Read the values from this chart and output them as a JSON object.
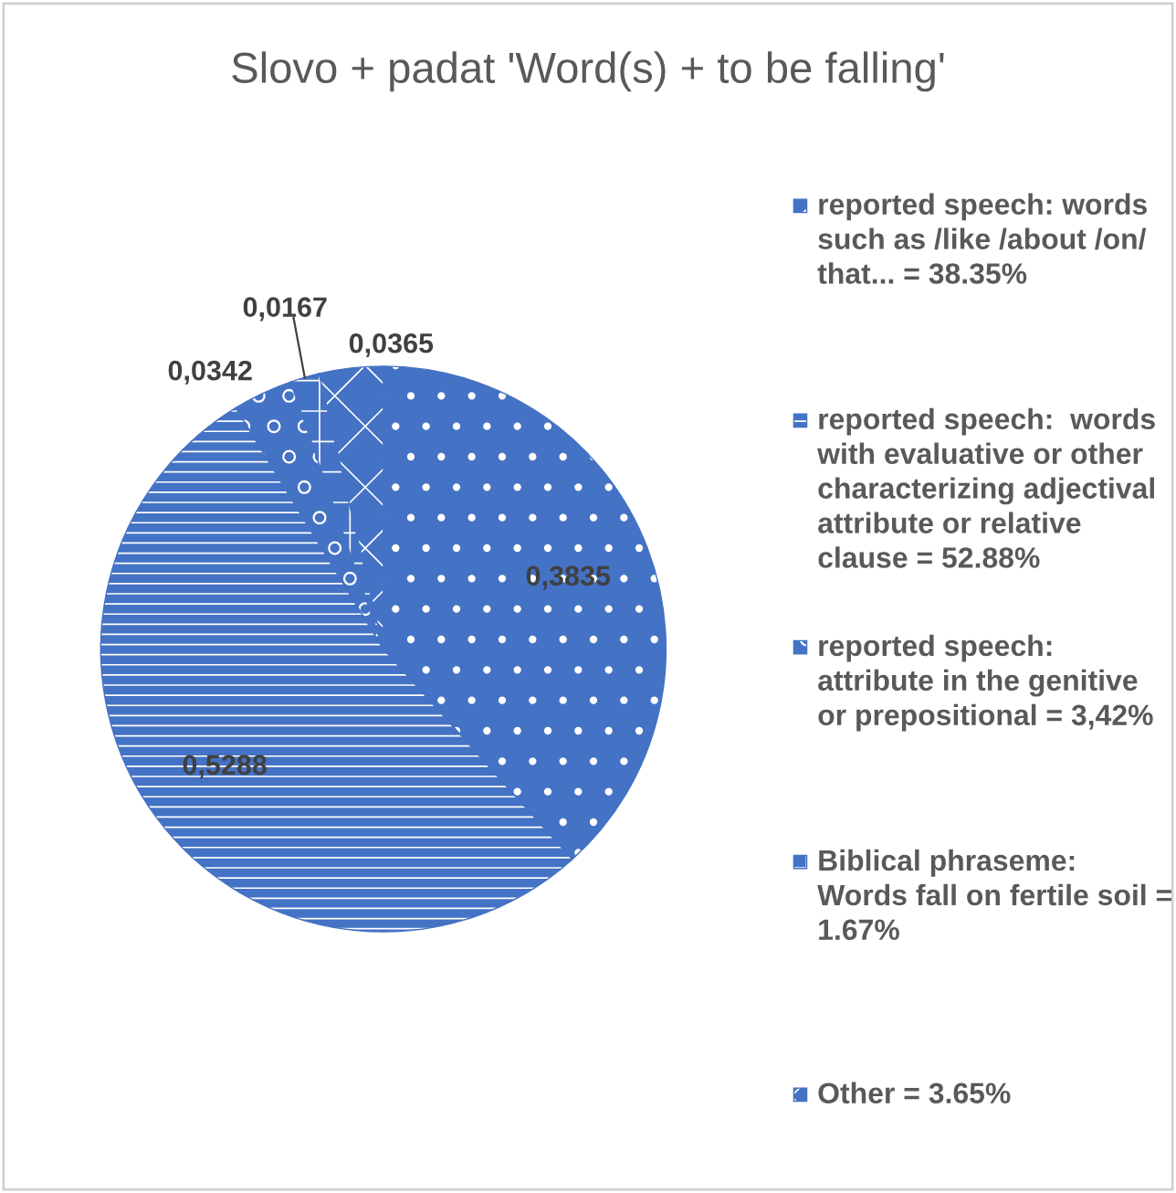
{
  "chart_data": {
    "type": "pie",
    "title": "Slovo + padat 'Word(s) + to be falling'",
    "categories": [
      "reported speech: words such as /like /about /on/ that... = 38.35%",
      "reported speech:  words with evaluative or other characterizing adjectival attribute or relative clause = 52.88%",
      "reported speech: attribute in the genitive or prepositional = 3,42%",
      "Biblical phraseme: Words fall on fertile soil = 1.67%",
      "Other = 3.65%"
    ],
    "values": [
      0.3835,
      0.5288,
      0.0342,
      0.0167,
      0.0365
    ],
    "value_labels": [
      "0,3835",
      "0,5288",
      "0,0342",
      "0,0167",
      "0,0365"
    ],
    "colors": [
      "#4472c4",
      "#4472c4",
      "#4472c4",
      "#4472c4",
      "#4472c4"
    ],
    "legend": "right"
  }
}
